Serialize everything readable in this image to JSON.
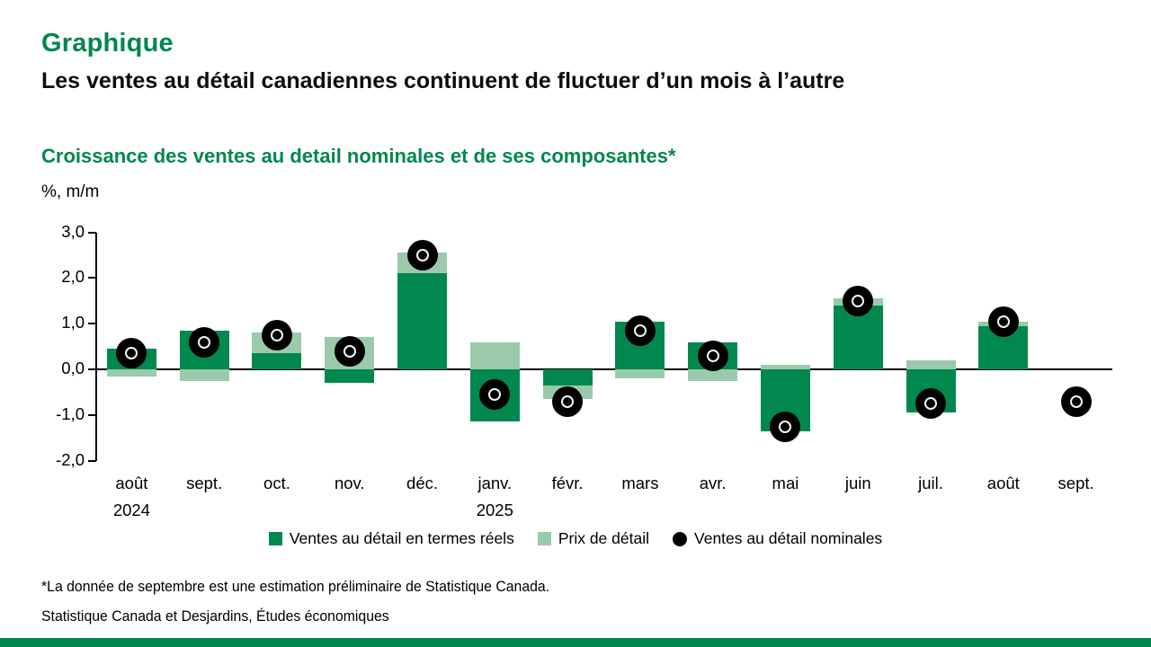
{
  "page": {
    "kicker": "Graphique",
    "headline": "Les ventes au détail canadiennes continuent de fluctuer d’un mois à l’autre",
    "chart_title": "Croissance des ventes au detail nominales et de ses composantes*",
    "unit_label": "%, m/m",
    "footnote": "*La donnée de septembre est une estimation préliminaire de Statistique Canada.",
    "source": "Statistique Canada et Desjardins, Études économiques"
  },
  "colors": {
    "brand_green": "#00874E",
    "bar_dark_green": "#00884F",
    "bar_light_green": "#9ACAAB",
    "dot_black": "#000000",
    "footer_green": "#00874E"
  },
  "chart_data": {
    "type": "bar",
    "stacked": true,
    "title": "Croissance des ventes au detail nominales et de ses composantes*",
    "ylabel": "%, m/m",
    "ylim": [
      -2.0,
      3.0
    ],
    "grid": false,
    "legend_position": "bottom",
    "yticks": [
      {
        "value": 3.0,
        "label": "3,0"
      },
      {
        "value": 2.0,
        "label": "2,0"
      },
      {
        "value": 1.0,
        "label": "1,0"
      },
      {
        "value": 0.0,
        "label": "0,0"
      },
      {
        "value": -1.0,
        "label": "-1,0"
      },
      {
        "value": -2.0,
        "label": "-2,0"
      }
    ],
    "categories": [
      "août",
      "sept.",
      "oct.",
      "nov.",
      "déc.",
      "janv.",
      "févr.",
      "mars",
      "avr.",
      "mai",
      "juin",
      "juil.",
      "août",
      "sept."
    ],
    "year_labels": [
      {
        "index": 0,
        "label": "2024"
      },
      {
        "index": 5,
        "label": "2025"
      }
    ],
    "series": [
      {
        "name": "Ventes au détail en termes réels",
        "type": "bar",
        "color": "#00884F",
        "values": [
          0.45,
          0.85,
          0.35,
          -0.3,
          2.1,
          -1.15,
          -0.35,
          1.05,
          0.6,
          -1.35,
          1.4,
          -0.95,
          0.95,
          null
        ]
      },
      {
        "name": "Prix de détail",
        "type": "bar",
        "color": "#9ACAAB",
        "values": [
          -0.15,
          -0.25,
          0.45,
          0.7,
          0.45,
          0.6,
          -0.3,
          -0.2,
          -0.25,
          0.1,
          0.15,
          0.2,
          0.1,
          null
        ]
      },
      {
        "name": "Ventes au détail nominales",
        "type": "point",
        "color": "#000000",
        "values": [
          0.35,
          0.6,
          0.75,
          0.4,
          2.5,
          -0.55,
          -0.7,
          0.85,
          0.3,
          -1.25,
          1.5,
          -0.75,
          1.05,
          -0.7
        ]
      }
    ]
  }
}
